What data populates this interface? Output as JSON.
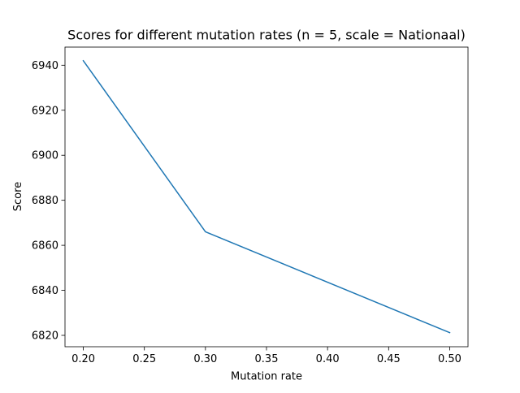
{
  "chart_data": {
    "type": "line",
    "title": "Scores for different mutation rates (n = 5, scale = Nationaal)",
    "xlabel": "Mutation rate",
    "ylabel": "Score",
    "xlim": [
      0.185,
      0.515
    ],
    "ylim": [
      6814.95,
      6948.05
    ],
    "xticks": [
      0.2,
      0.25,
      0.3,
      0.35,
      0.4,
      0.45,
      0.5
    ],
    "xtick_labels": [
      "0.20",
      "0.25",
      "0.30",
      "0.35",
      "0.40",
      "0.45",
      "0.50"
    ],
    "yticks": [
      6820,
      6840,
      6860,
      6880,
      6900,
      6920,
      6940
    ],
    "ytick_labels": [
      "6820",
      "6840",
      "6860",
      "6880",
      "6900",
      "6920",
      "6940"
    ],
    "grid": false,
    "series": [
      {
        "color": "#1f77b4",
        "x": [
          0.2,
          0.3,
          0.5
        ],
        "y": [
          6942,
          6866,
          6821.2
        ]
      }
    ]
  }
}
